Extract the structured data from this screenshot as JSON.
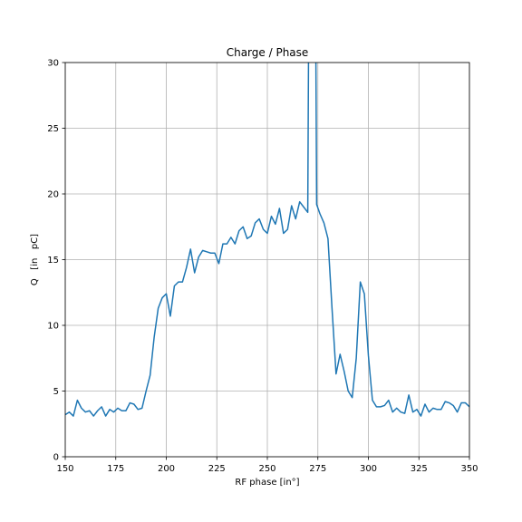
{
  "chart_data": {
    "type": "line",
    "title": "Charge / Phase",
    "xlabel": "RF phase [in°]",
    "ylabel": "Q   [in   pC]",
    "xlim": [
      150,
      350
    ],
    "ylim": [
      0,
      30
    ],
    "xticks": [
      "150",
      "175",
      "200",
      "225",
      "250",
      "275",
      "300",
      "325",
      "350"
    ],
    "yticks": [
      "0",
      "5",
      "10",
      "15",
      "20",
      "25",
      "30"
    ],
    "grid": true,
    "series": [
      {
        "color": "#1f77b4",
        "x": [
          150,
          152,
          154,
          156,
          158,
          160,
          162,
          164,
          166,
          168,
          170,
          172,
          174,
          176,
          178,
          180,
          182,
          184,
          186,
          188,
          190,
          192,
          194,
          196,
          198,
          200,
          202,
          204,
          206,
          208,
          210,
          212,
          214,
          216,
          218,
          220,
          222,
          224,
          226,
          228,
          230,
          232,
          234,
          236,
          238,
          240,
          242,
          244,
          246,
          248,
          250,
          252,
          254,
          256,
          258,
          260,
          262,
          264,
          266,
          268,
          270,
          270.4,
          272,
          274,
          274.4,
          276,
          278,
          280,
          282,
          284,
          286,
          288,
          290,
          292,
          294,
          296,
          298,
          300,
          302,
          304,
          306,
          308,
          310,
          312,
          314,
          316,
          318,
          320,
          322,
          324,
          326,
          328,
          330,
          332,
          334,
          336,
          338,
          340,
          342,
          344,
          346,
          348,
          350
        ],
        "y": [
          3.2,
          3.4,
          3.1,
          4.3,
          3.7,
          3.4,
          3.5,
          3.1,
          3.5,
          3.8,
          3.1,
          3.6,
          3.4,
          3.7,
          3.5,
          3.5,
          4.1,
          4.0,
          3.6,
          3.7,
          5.0,
          6.2,
          9.1,
          11.3,
          12.1,
          12.4,
          10.7,
          13.0,
          13.3,
          13.3,
          14.4,
          15.8,
          14.0,
          15.2,
          15.7,
          15.6,
          15.5,
          15.5,
          14.7,
          16.2,
          16.2,
          16.7,
          16.2,
          17.2,
          17.5,
          16.6,
          16.8,
          17.8,
          18.1,
          17.3,
          17.0,
          18.3,
          17.7,
          18.9,
          17.0,
          17.3,
          19.1,
          18.1,
          19.4,
          19.0,
          18.6,
          31,
          31,
          31,
          19.2,
          18.5,
          17.8,
          16.6,
          11.3,
          6.3,
          7.8,
          6.5,
          5.0,
          4.5,
          7.5,
          13.3,
          12.4,
          7.7,
          4.3,
          3.8,
          3.8,
          3.9,
          4.3,
          3.4,
          3.7,
          3.4,
          3.3,
          4.7,
          3.4,
          3.6,
          3.1,
          4.0,
          3.4,
          3.7,
          3.6,
          3.6,
          4.2,
          4.1,
          3.9,
          3.4,
          4.1,
          4.1,
          3.8
        ]
      }
    ]
  }
}
